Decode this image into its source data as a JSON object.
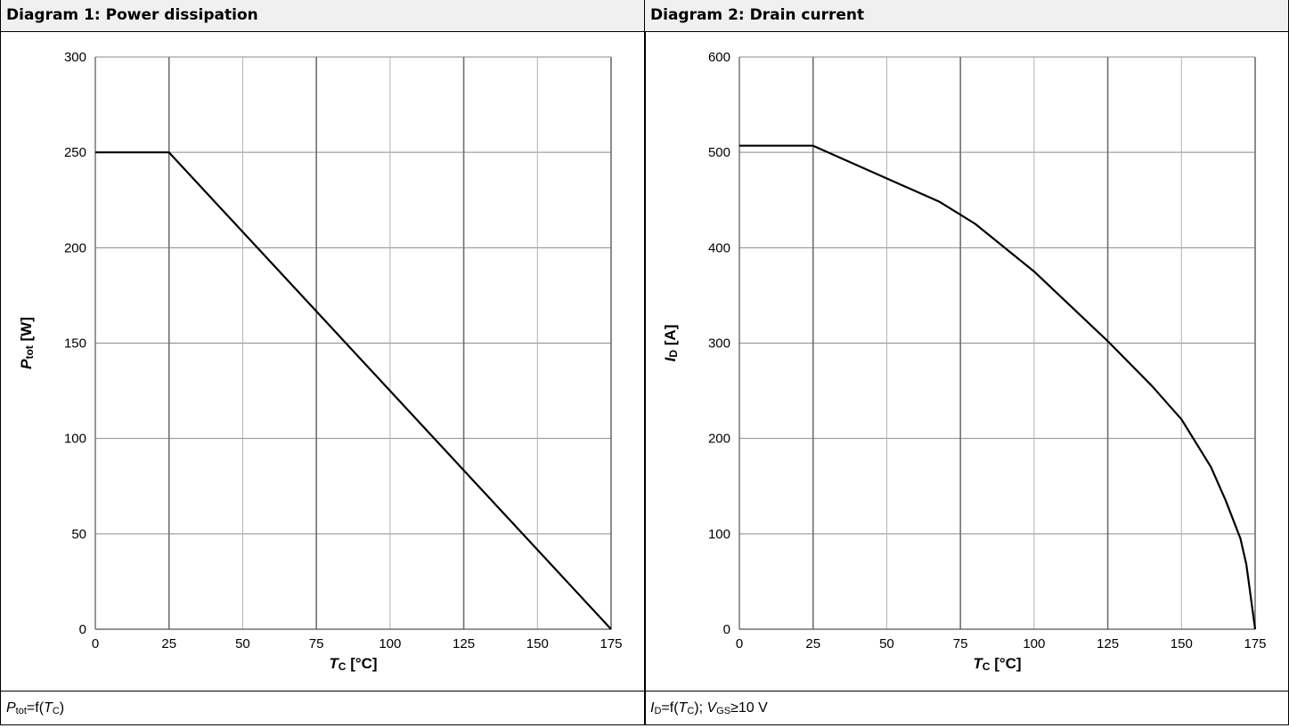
{
  "panels": [
    {
      "header": "Diagram 1: Power dissipation",
      "footer": {
        "func_var": "P",
        "func_sub": "tot",
        "func_eq": "=f(",
        "arg_var": "T",
        "arg_sub": "C",
        "close": ")",
        "extra": ""
      }
    },
    {
      "header": "Diagram 2: Drain current",
      "footer": {
        "func_var": "I",
        "func_sub": "D",
        "func_eq": "=f(",
        "arg_var": "T",
        "arg_sub": "C",
        "close": ");",
        "extra_var": "V",
        "extra_sub": "GS",
        "extra": "≥10 V"
      }
    }
  ],
  "chart_data": [
    {
      "type": "line",
      "title": "Diagram 1: Power dissipation",
      "xlabel": {
        "var": "T",
        "sub": "C",
        "unit": " [°C]"
      },
      "ylabel": {
        "var": "P",
        "sub": "tot",
        "unit": " [W]"
      },
      "xlim": [
        0,
        175
      ],
      "ylim": [
        0,
        300
      ],
      "xticks": [
        0,
        25,
        50,
        75,
        100,
        125,
        150,
        175
      ],
      "yticks": [
        0,
        50,
        100,
        150,
        200,
        250,
        300
      ],
      "grid": true,
      "series": [
        {
          "x": [
            0,
            25,
            175
          ],
          "y": [
            250,
            250,
            0
          ]
        }
      ]
    },
    {
      "type": "line",
      "title": "Diagram 2: Drain current",
      "xlabel": {
        "var": "T",
        "sub": "C",
        "unit": " [°C]"
      },
      "ylabel": {
        "var": "I",
        "sub": "D",
        "unit": " [A]"
      },
      "xlim": [
        0,
        175
      ],
      "ylim": [
        0,
        600
      ],
      "xticks": [
        0,
        25,
        50,
        75,
        100,
        125,
        150,
        175
      ],
      "yticks": [
        0,
        100,
        200,
        300,
        400,
        500,
        600
      ],
      "grid": true,
      "series": [
        {
          "x": [
            0,
            25,
            68,
            80,
            100,
            125,
            140,
            150,
            160,
            165,
            170,
            172,
            175
          ],
          "y": [
            507,
            507,
            448,
            425,
            375,
            302,
            255,
            220,
            170,
            135,
            95,
            68,
            0
          ]
        }
      ]
    }
  ]
}
